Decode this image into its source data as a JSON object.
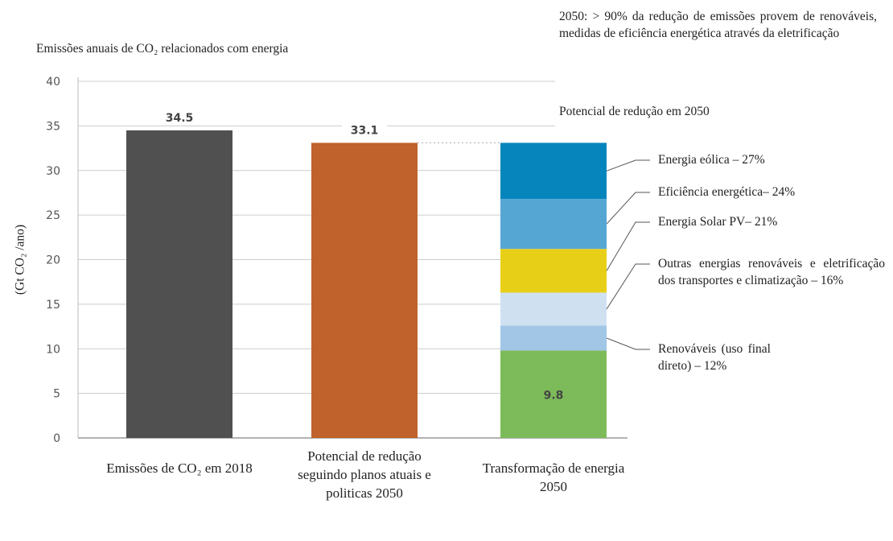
{
  "chart_data": {
    "type": "bar",
    "title": "Emissões anuais de CO₂ relacionados com energia",
    "y_label": "(Gt CO₂ /ano)",
    "annotation": "2050: > 90% da redução de emissões provem de renováveis, medidas de eficiência energética através da eletrificação",
    "subtitle": "Potencial de redução em 2050",
    "categories": [
      "Emissões de CO₂ em 2018",
      "Potencial de redução seguindo planos atuais e politicas 2050",
      "Transformação de energia 2050"
    ],
    "values": [
      34.5,
      33.1,
      9.8
    ],
    "colors": [
      "#505050",
      "#c0622b",
      "#7dbb5a"
    ],
    "segments": [
      {
        "name": "Renováveis (uso final direto) – 12%",
        "color": "#a2c6e6",
        "value": 2.8
      },
      {
        "name": "Outras energias renováveis e eletrificação dos transportes e climatização – 16%",
        "color": "#cfe1f1",
        "value": 3.7
      },
      {
        "name": "Energia Solar PV– 21%",
        "color": "#e8cf17",
        "value": 4.9
      },
      {
        "name": "Eficiência energética– 24%",
        "color": "#56a6d3",
        "value": 5.6
      },
      {
        "name": "Energia eólica – 27%",
        "color": "#0685bd",
        "value": 6.3
      }
    ],
    "ylim": [
      0,
      40
    ],
    "yticks": [
      0,
      5,
      10,
      15,
      20,
      25,
      30,
      35,
      40
    ],
    "grid": true
  }
}
